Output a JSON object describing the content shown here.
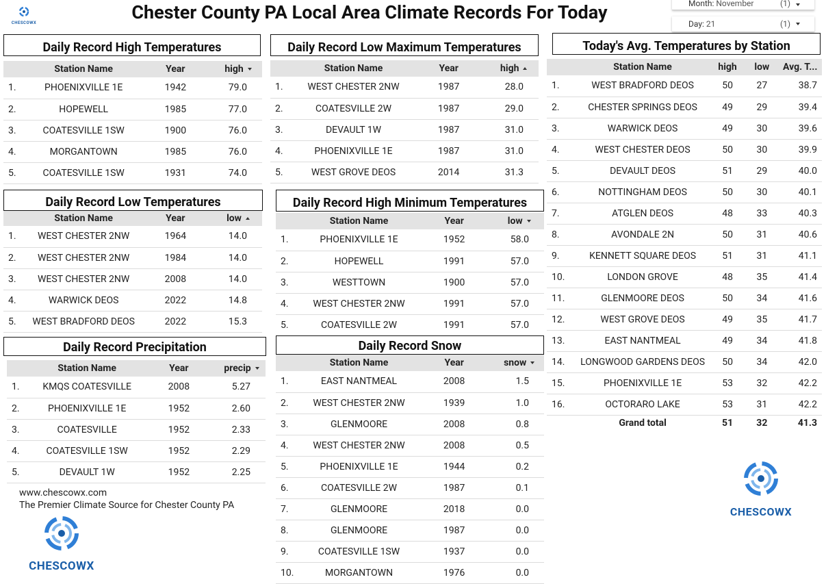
{
  "header": {
    "title": "Chester County PA Local Area Climate Records For Today",
    "filters": [
      {
        "label": "Month:",
        "value": "November",
        "count": "(1)"
      },
      {
        "label": "Day:",
        "value": "21",
        "count": "(1)"
      }
    ]
  },
  "logos": [
    "CHESCOWX",
    "CHESCOWX",
    "CHESCOWX"
  ],
  "footer": {
    "url": "www.chescowx.com",
    "tagline": "The Premier Climate Source for Chester County PA"
  },
  "tables": [
    {
      "title": "Daily Record High Temperatures",
      "columns": [
        "Station Name",
        "Year",
        "high"
      ],
      "sort": {
        "column": 2,
        "dir": "desc"
      },
      "rows": [
        [
          "1.",
          "PHOENIXVILLE 1E",
          "1942",
          "79.0"
        ],
        [
          "2.",
          "HOPEWELL",
          "1985",
          "77.0"
        ],
        [
          "3.",
          "COATESVILLE 1SW",
          "1900",
          "76.0"
        ],
        [
          "4.",
          "MORGANTOWN",
          "1985",
          "76.0"
        ],
        [
          "5.",
          "COATESVILLE 1SW",
          "1931",
          "74.0"
        ]
      ]
    },
    {
      "title": "Daily Record Low Maximum Temperatures",
      "columns": [
        "Station Name",
        "Year",
        "high"
      ],
      "sort": {
        "column": 2,
        "dir": "asc"
      },
      "rows": [
        [
          "1.",
          "WEST CHESTER 2NW",
          "1987",
          "28.0"
        ],
        [
          "2.",
          "COATESVILLE 2W",
          "1987",
          "29.0"
        ],
        [
          "3.",
          "DEVAULT 1W",
          "1987",
          "31.0"
        ],
        [
          "4.",
          "PHOENIXVILLE 1E",
          "1987",
          "31.0"
        ],
        [
          "5.",
          "WEST GROVE DEOS",
          "2014",
          "31.3"
        ]
      ]
    },
    {
      "title": "Today's Avg. Temperatures by Station",
      "columns": [
        "Station Name",
        "high",
        "low",
        "Avg. T..."
      ],
      "rows": [
        [
          "1.",
          "WEST BRADFORD DEOS",
          "50",
          "27",
          "38.7"
        ],
        [
          "2.",
          "CHESTER SPRINGS DEOS",
          "49",
          "29",
          "39.4"
        ],
        [
          "3.",
          "WARWICK DEOS",
          "49",
          "30",
          "39.6"
        ],
        [
          "4.",
          "WEST CHESTER DEOS",
          "50",
          "30",
          "39.9"
        ],
        [
          "5.",
          "DEVAULT DEOS",
          "51",
          "29",
          "40.0"
        ],
        [
          "6.",
          "NOTTINGHAM DEOS",
          "50",
          "30",
          "40.1"
        ],
        [
          "7.",
          "ATGLEN DEOS",
          "48",
          "33",
          "40.3"
        ],
        [
          "8.",
          "AVONDALE 2N",
          "50",
          "31",
          "40.6"
        ],
        [
          "9.",
          "KENNETT SQUARE DEOS",
          "51",
          "31",
          "41.1"
        ],
        [
          "10.",
          "LONDON GROVE",
          "48",
          "35",
          "41.4"
        ],
        [
          "11.",
          "GLENMOORE DEOS",
          "50",
          "34",
          "41.6"
        ],
        [
          "12.",
          "WEST GROVE DEOS",
          "49",
          "35",
          "41.7"
        ],
        [
          "13.",
          "EAST NANTMEAL",
          "49",
          "34",
          "41.8"
        ],
        [
          "14.",
          "LONGWOOD GARDENS DEOS",
          "50",
          "34",
          "42.0"
        ],
        [
          "15.",
          "PHOENIXVILLE 1E",
          "53",
          "32",
          "42.2"
        ],
        [
          "16.",
          "OCTORARO LAKE",
          "53",
          "31",
          "42.2"
        ]
      ],
      "total": [
        "Grand total",
        "51",
        "32",
        "41.3"
      ]
    },
    {
      "title": "Daily Record Low Temperatures",
      "columns": [
        "Station Name",
        "Year",
        "low"
      ],
      "sort": {
        "column": 2,
        "dir": "asc"
      },
      "rows": [
        [
          "1.",
          "WEST CHESTER 2NW",
          "1964",
          "14.0"
        ],
        [
          "2.",
          "WEST CHESTER 2NW",
          "1984",
          "14.0"
        ],
        [
          "3.",
          "WEST CHESTER 2NW",
          "2008",
          "14.0"
        ],
        [
          "4.",
          "WARWICK DEOS",
          "2022",
          "14.8"
        ],
        [
          "5.",
          "WEST BRADFORD DEOS",
          "2022",
          "15.3"
        ]
      ]
    },
    {
      "title": "Daily Record High Minimum Temperatures",
      "columns": [
        "Station Name",
        "Year",
        "low"
      ],
      "sort": {
        "column": 2,
        "dir": "desc"
      },
      "rows": [
        [
          "1.",
          "PHOENIXVILLE 1E",
          "1952",
          "58.0"
        ],
        [
          "2.",
          "HOPEWELL",
          "1991",
          "57.0"
        ],
        [
          "3.",
          "WESTTOWN",
          "1900",
          "57.0"
        ],
        [
          "4.",
          "WEST CHESTER 2NW",
          "1991",
          "57.0"
        ],
        [
          "5.",
          "COATESVILLE 2W",
          "1991",
          "57.0"
        ]
      ]
    },
    {
      "title": "Daily Record Precipitation",
      "columns": [
        "Station Name",
        "Year",
        "precip"
      ],
      "sort": {
        "column": 2,
        "dir": "desc"
      },
      "rows": [
        [
          "1.",
          "KMQS COATESVILLE",
          "2008",
          "5.27"
        ],
        [
          "2.",
          "PHOENIXVILLE 1E",
          "1952",
          "2.60"
        ],
        [
          "3.",
          "COATESVILLE",
          "1952",
          "2.33"
        ],
        [
          "4.",
          "COATESVILLE 1SW",
          "1952",
          "2.29"
        ],
        [
          "5.",
          "DEVAULT 1W",
          "1952",
          "2.25"
        ]
      ]
    },
    {
      "title": "Daily Record Snow",
      "columns": [
        "Station Name",
        "Year",
        "snow"
      ],
      "sort": {
        "column": 2,
        "dir": "desc"
      },
      "rows": [
        [
          "1.",
          "EAST NANTMEAL",
          "2008",
          "1.5"
        ],
        [
          "2.",
          "WEST CHESTER 2NW",
          "1939",
          "1.0"
        ],
        [
          "3.",
          "GLENMOORE",
          "2008",
          "0.8"
        ],
        [
          "4.",
          "WEST CHESTER 2NW",
          "2008",
          "0.5"
        ],
        [
          "5.",
          "PHOENIXVILLE 1E",
          "1944",
          "0.2"
        ],
        [
          "6.",
          "COATESVILLE 2W",
          "1987",
          "0.1"
        ],
        [
          "7.",
          "GLENMOORE",
          "2018",
          "0.0"
        ],
        [
          "8.",
          "GLENMOORE",
          "1987",
          "0.0"
        ],
        [
          "9.",
          "COATESVILLE 1SW",
          "1937",
          "0.0"
        ],
        [
          "10.",
          "MORGANTOWN",
          "1976",
          "0.0"
        ]
      ]
    }
  ]
}
